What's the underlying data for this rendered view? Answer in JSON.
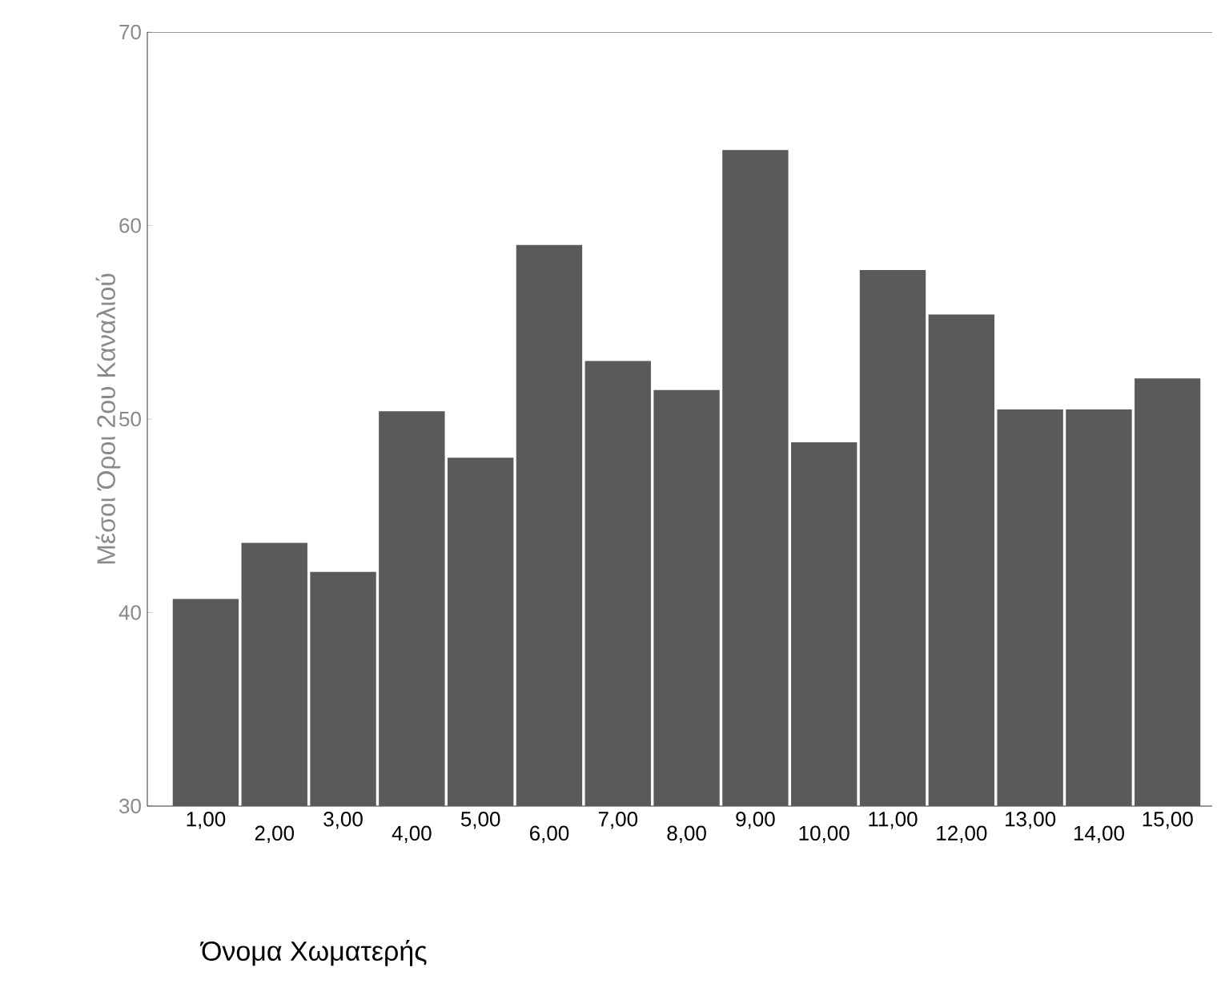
{
  "chart_data": {
    "type": "bar",
    "xlabel": "Όνομα Χωματερής",
    "ylabel": "Μέσοι Όροι 2ου Καναλιού",
    "categories": [
      "1,00",
      "2,00",
      "3,00",
      "4,00",
      "5,00",
      "6,00",
      "7,00",
      "8,00",
      "9,00",
      "10,00",
      "11,00",
      "12,00",
      "13,00",
      "14,00",
      "15,00"
    ],
    "values": [
      40.7,
      43.6,
      42.1,
      50.4,
      48.0,
      59.0,
      53.0,
      51.5,
      63.9,
      48.8,
      57.7,
      55.4,
      50.5,
      50.5,
      52.1
    ],
    "color": "#5a5a5a",
    "ylim": [
      30,
      70
    ],
    "yticks": [
      30,
      40,
      50,
      60,
      70
    ]
  }
}
